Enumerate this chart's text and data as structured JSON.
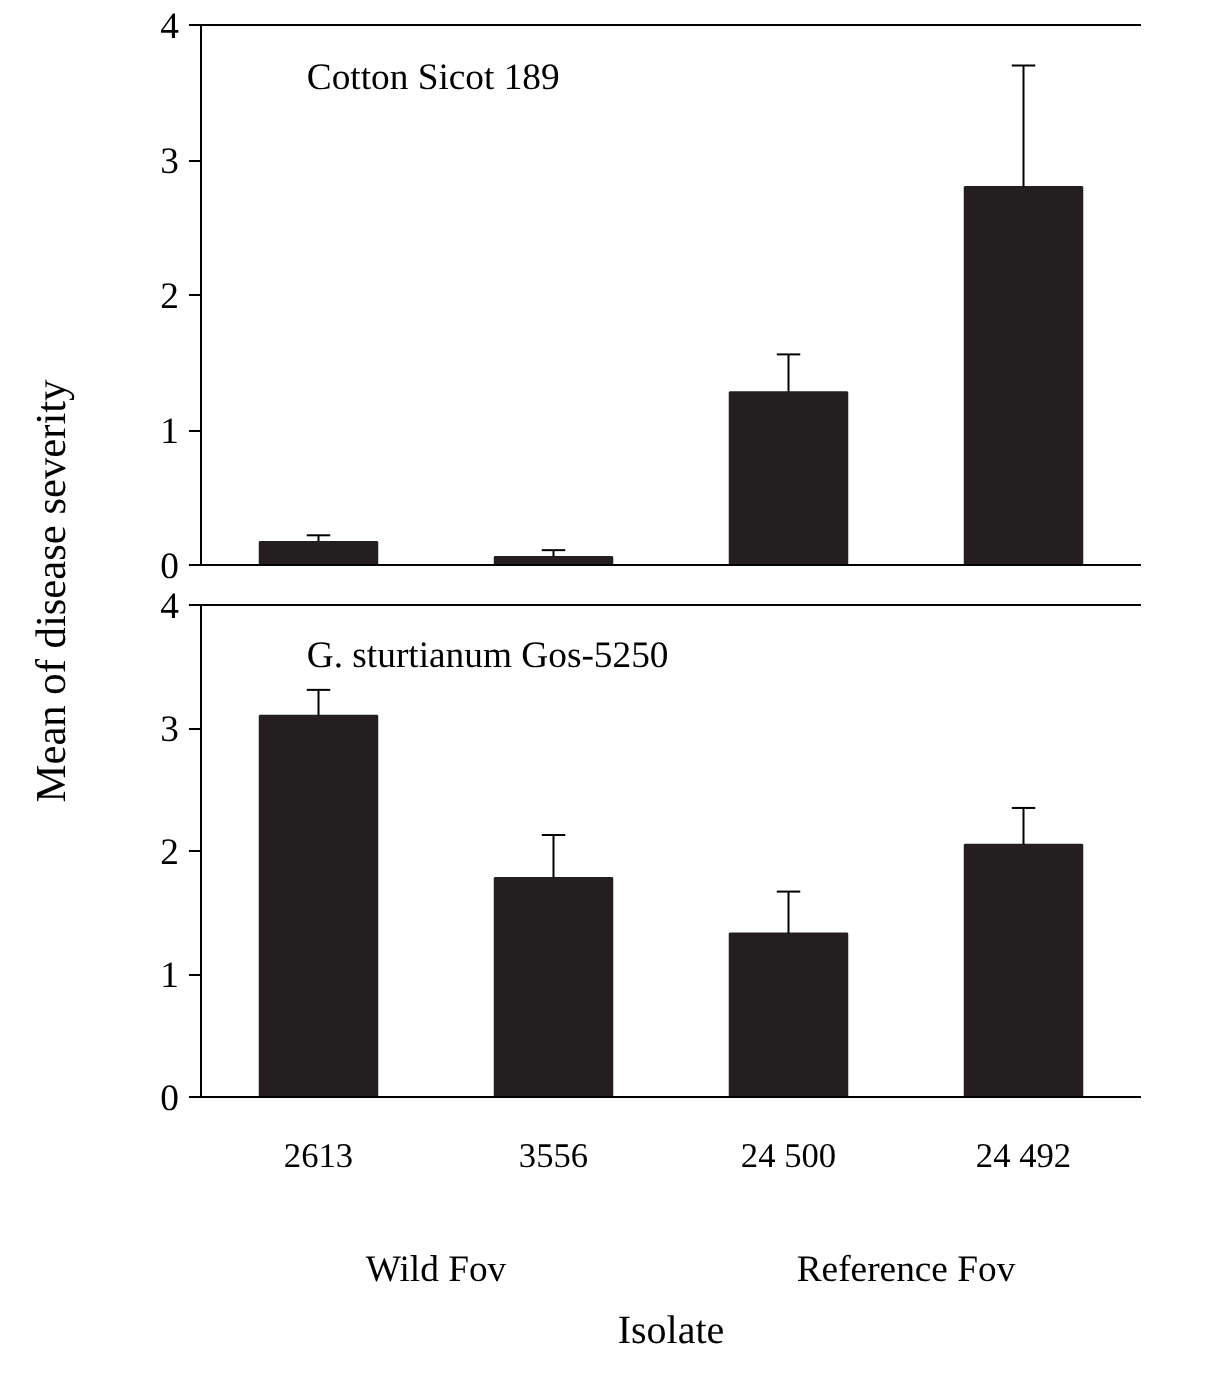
{
  "chart_data": [
    {
      "type": "bar",
      "title": "Cotton Sicot 189",
      "ylabel": "Mean of disease severity",
      "categories": [
        null,
        null,
        null,
        null
      ],
      "color": "#231f20",
      "values": [
        0.17,
        0.06,
        1.28,
        2.8
      ],
      "errors": [
        [
          0.17,
          0.22
        ],
        [
          0.06,
          0.11
        ],
        [
          1.28,
          1.56
        ],
        [
          2.8,
          3.7
        ]
      ],
      "ylim": [
        0,
        4
      ],
      "yticks": [
        0,
        1,
        2,
        3,
        4
      ],
      "tick_labels": "y"
    },
    {
      "type": "bar",
      "title": "G. sturtianum Gos-5250",
      "xlabel": "Isolate",
      "categories": [
        "2613",
        "3556",
        "24 500",
        "24 492"
      ],
      "color": "#231f20",
      "values": [
        3.1,
        1.78,
        1.33,
        2.05
      ],
      "errors": [
        [
          3.1,
          3.31
        ],
        [
          1.78,
          2.13
        ],
        [
          1.33,
          1.67
        ],
        [
          2.05,
          2.35
        ]
      ],
      "ylim": [
        0,
        4
      ],
      "yticks": [
        0,
        1,
        2,
        3,
        4
      ],
      "annotations": [
        "Wild Fov",
        "Reference Fov"
      ]
    }
  ]
}
